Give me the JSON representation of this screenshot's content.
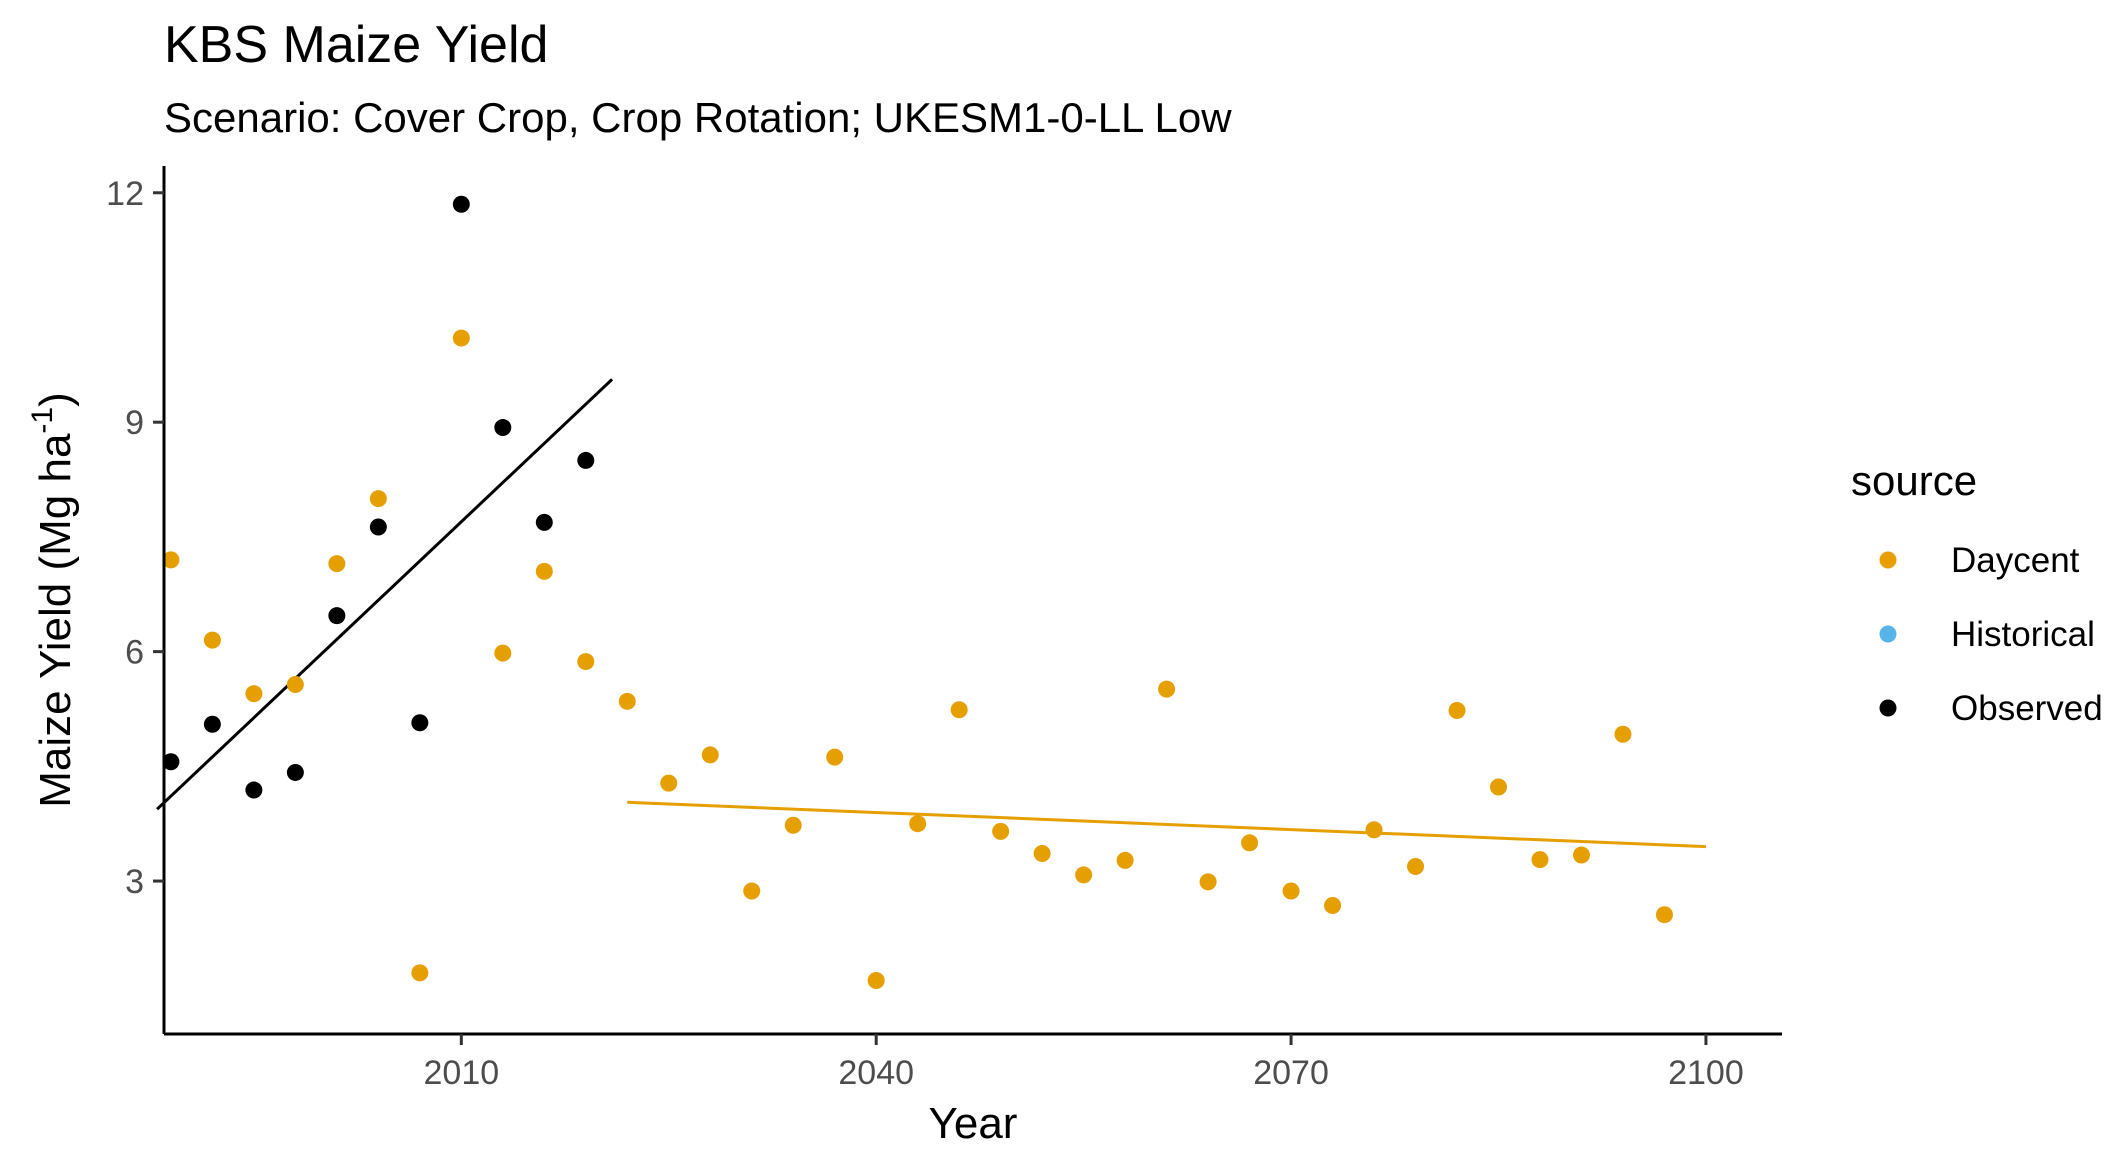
{
  "chart_data": {
    "type": "scatter",
    "title": "KBS Maize Yield",
    "subtitle": "Scenario: Cover Crop, Crop Rotation; UKESM1-0-LL Low",
    "xlabel": "Year",
    "ylabel_main": "Maize Yield (Mg ha",
    "ylabel_sup": "-1",
    "ylabel_close": ")",
    "xlim": [
      1988.5,
      2105.5
    ],
    "ylim": [
      1.0,
      12.35
    ],
    "xticks": [
      2010,
      2040,
      2070,
      2100
    ],
    "yticks": [
      3,
      6,
      9,
      12
    ],
    "grid": false,
    "legend": {
      "title": "source",
      "position": "right",
      "entries": [
        {
          "name": "Daycent",
          "color": "#E69F00"
        },
        {
          "name": "Historical",
          "color": "#56B4E9"
        },
        {
          "name": "Observed",
          "color": "#000000"
        }
      ]
    },
    "series": [
      {
        "name": "Daycent",
        "color": "#E69F00",
        "x": [
          1989,
          1992,
          1995,
          1998,
          2001,
          2004,
          2007,
          2010,
          2013,
          2016,
          2019,
          2022,
          2025,
          2028,
          2031,
          2034,
          2037,
          2040,
          2043,
          2046,
          2049,
          2052,
          2055,
          2058,
          2061,
          2064,
          2067,
          2070,
          2073,
          2076,
          2079,
          2082,
          2085,
          2088,
          2091,
          2094,
          2097
        ],
        "y": [
          7.2,
          6.15,
          5.45,
          5.57,
          7.15,
          8.0,
          1.8,
          10.1,
          5.98,
          7.05,
          5.87,
          5.35,
          4.28,
          4.65,
          2.87,
          3.73,
          4.62,
          1.7,
          3.75,
          5.24,
          3.65,
          3.36,
          3.08,
          3.27,
          5.51,
          2.99,
          3.5,
          2.87,
          2.68,
          3.67,
          3.19,
          5.23,
          4.23,
          3.28,
          3.34,
          4.92,
          2.56
        ]
      },
      {
        "name": "Historical",
        "color": "#56B4E9",
        "x": [],
        "y": []
      },
      {
        "name": "Observed",
        "color": "#000000",
        "x": [
          1989,
          1992,
          1995,
          1998,
          2001,
          2004,
          2007,
          2010,
          2013,
          2016,
          2019
        ],
        "y": [
          4.56,
          5.05,
          4.19,
          4.42,
          6.47,
          7.63,
          5.07,
          11.85,
          8.93,
          7.69,
          8.5
        ]
      }
    ],
    "trend_lines": [
      {
        "name": "Observed trend",
        "color": "#000000",
        "x": [
          1988,
          2020.9
        ],
        "y": [
          3.94,
          9.56
        ]
      },
      {
        "name": "Daycent trend",
        "color": "#E69F00",
        "x": [
          2022,
          2100
        ],
        "y": [
          4.03,
          3.45
        ]
      }
    ]
  }
}
